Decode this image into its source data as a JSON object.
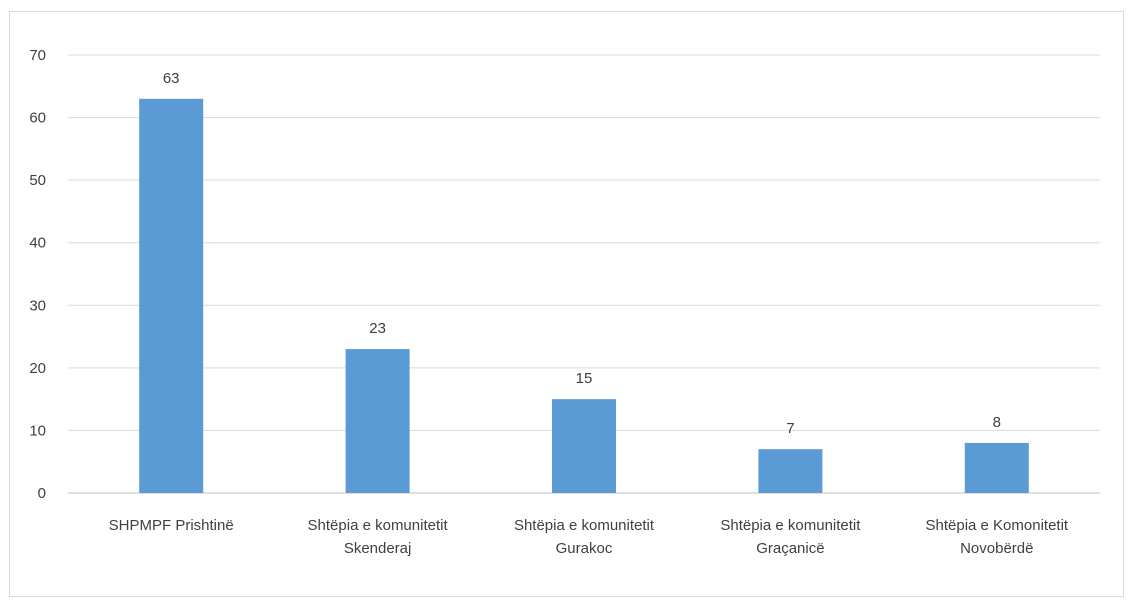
{
  "chart_data": {
    "type": "bar",
    "categories": [
      [
        "SHPMPF Prishtinë"
      ],
      [
        "Shtëpia e komunitetit",
        "Skenderaj"
      ],
      [
        "Shtëpia e komunitetit",
        "Gurakoc"
      ],
      [
        "Shtëpia e komunitetit",
        "Graçanicë"
      ],
      [
        "Shtëpia e Komonitetit",
        "Novobërdë"
      ]
    ],
    "values": [
      63,
      23,
      15,
      7,
      8
    ],
    "ylim": [
      0,
      70
    ],
    "yticks": [
      0,
      10,
      20,
      30,
      40,
      50,
      60,
      70
    ],
    "grid": true,
    "legend": "none",
    "colors": {
      "bar": "#5b9bd5",
      "grid": "#d9d9d9",
      "axis": "#bfbfbf",
      "text": "#404040"
    }
  }
}
